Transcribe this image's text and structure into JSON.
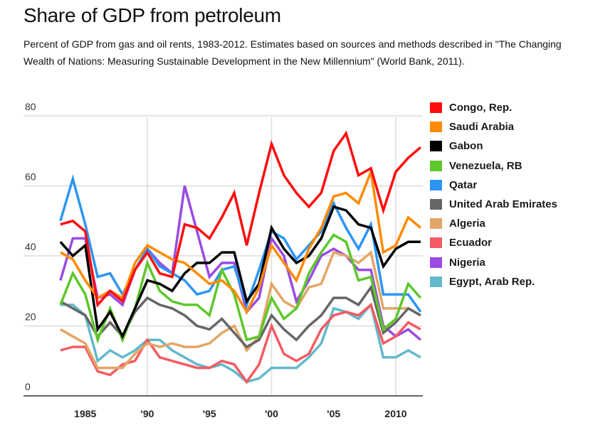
{
  "header": {
    "title": "Share of GDP from petroleum",
    "subtitle": "Percent of GDP from gas and oil rents, 1983-2012. Estimates based on sources and methods described in \"The Changing Wealth of Nations: Measuring Sustainable Development in the New Millennium\" (World Bank, 2011)."
  },
  "chart_data": {
    "type": "line",
    "title": "Share of GDP from petroleum",
    "subtitle": "Percent of GDP from gas and oil rents, 1983-2012.",
    "xlabel": "",
    "ylabel": "",
    "x": [
      1983,
      1984,
      1985,
      1986,
      1987,
      1988,
      1989,
      1990,
      1991,
      1992,
      1993,
      1994,
      1995,
      1996,
      1997,
      1998,
      1999,
      2000,
      2001,
      2002,
      2003,
      2004,
      2005,
      2006,
      2007,
      2008,
      2009,
      2010,
      2011,
      2012
    ],
    "xlim": [
      1983,
      2012
    ],
    "ylim": [
      0,
      80
    ],
    "y_ticks": [
      0,
      20,
      40,
      60,
      80
    ],
    "y_tick_labels": [
      "0",
      "20",
      "40",
      "60",
      "80"
    ],
    "x_ticks": [
      1985,
      1990,
      1995,
      2000,
      2005,
      2010
    ],
    "x_tick_labels": [
      "1985",
      "'90",
      "'95",
      "'00",
      "'05",
      "2010"
    ],
    "x_gridlines": [
      1990,
      2000,
      2010
    ],
    "grid": true,
    "legend_position": "right",
    "series": [
      {
        "name": "Nigeria",
        "color": "#9b4ae3",
        "values": [
          33,
          45,
          45,
          28,
          29,
          26,
          36,
          42,
          38,
          35,
          60,
          47,
          34,
          38,
          38,
          24,
          28,
          45,
          40,
          27,
          33,
          40,
          42,
          40,
          36,
          36,
          20,
          17,
          19,
          16
        ]
      },
      {
        "name": "Egypt, Arab Rep.",
        "color": "#63b9cc",
        "values": [
          26,
          26,
          23,
          10,
          13,
          11,
          13,
          16,
          16,
          13,
          11,
          9,
          8,
          9,
          7,
          4,
          5,
          8,
          8,
          8,
          11,
          15,
          25,
          24,
          22,
          26,
          11,
          11,
          13,
          11
        ]
      },
      {
        "name": "Ecuador",
        "color": "#f45b62",
        "values": [
          13,
          14,
          14,
          7,
          6,
          9,
          10,
          16,
          11,
          10,
          9,
          8,
          8,
          10,
          9,
          4,
          9,
          20,
          12,
          10,
          12,
          19,
          23,
          24,
          23,
          26,
          15,
          17,
          21,
          19
        ]
      },
      {
        "name": "Algeria",
        "color": "#e3a566",
        "values": [
          19,
          17,
          15,
          8,
          8,
          8,
          12,
          15,
          14,
          15,
          14,
          14,
          15,
          18,
          20,
          13,
          17,
          32,
          27,
          25,
          31,
          32,
          41,
          40,
          38,
          41,
          25,
          25,
          25,
          23
        ]
      },
      {
        "name": "United Arab Emirates",
        "color": "#666666",
        "values": [
          27,
          25,
          23,
          17,
          21,
          17,
          24,
          28,
          26,
          25,
          23,
          20,
          19,
          22,
          18,
          14,
          16,
          23,
          19,
          16,
          20,
          23,
          28,
          28,
          26,
          31,
          18,
          21,
          25,
          23
        ]
      },
      {
        "name": "Qatar",
        "color": "#2b95f5",
        "values": [
          50,
          62,
          49,
          34,
          35,
          29,
          36,
          42,
          37,
          35,
          33,
          29,
          30,
          36,
          37,
          26,
          36,
          47,
          45,
          39,
          43,
          47,
          55,
          48,
          42,
          49,
          29,
          29,
          29,
          24
        ]
      },
      {
        "name": "Venezuela, RB",
        "color": "#5dc82a",
        "values": [
          26,
          35,
          29,
          16,
          25,
          16,
          25,
          38,
          30,
          27,
          26,
          26,
          23,
          36,
          29,
          16,
          17,
          28,
          22,
          25,
          35,
          41,
          46,
          44,
          33,
          34,
          19,
          22,
          32,
          28
        ]
      },
      {
        "name": "Gabon",
        "color": "#000000",
        "values": [
          44,
          40,
          43,
          19,
          24,
          17,
          25,
          33,
          32,
          30,
          35,
          38,
          38,
          41,
          41,
          27,
          32,
          48,
          42,
          38,
          40,
          45,
          54,
          53,
          49,
          48,
          37,
          42,
          44,
          44
        ]
      },
      {
        "name": "Saudi Arabia",
        "color": "#ff8a00",
        "values": [
          41,
          39,
          33,
          28,
          30,
          28,
          38,
          43,
          41,
          39,
          38,
          35,
          32,
          33,
          30,
          24,
          31,
          43,
          38,
          33,
          42,
          48,
          57,
          58,
          55,
          64,
          41,
          43,
          51,
          48
        ]
      },
      {
        "name": "Congo, Rep.",
        "color": "#ff0d0d",
        "values": [
          49,
          50,
          47,
          26,
          30,
          27,
          36,
          41,
          35,
          34,
          49,
          48,
          45,
          51,
          58,
          43,
          58,
          72,
          63,
          58,
          54,
          58,
          70,
          75,
          63,
          65,
          53,
          64,
          68,
          71
        ]
      }
    ]
  },
  "legend": {
    "items": [
      {
        "label": "Congo, Rep.",
        "color": "#ff0d0d"
      },
      {
        "label": "Saudi Arabia",
        "color": "#ff8a00"
      },
      {
        "label": "Gabon",
        "color": "#000000"
      },
      {
        "label": "Venezuela, RB",
        "color": "#5dc82a"
      },
      {
        "label": "Qatar",
        "color": "#2b95f5"
      },
      {
        "label": "United Arab Emirates",
        "color": "#666666"
      },
      {
        "label": "Algeria",
        "color": "#e3a566"
      },
      {
        "label": "Ecuador",
        "color": "#f45b62"
      },
      {
        "label": "Nigeria",
        "color": "#9b4ae3"
      },
      {
        "label": "Egypt, Arab Rep.",
        "color": "#63b9cc"
      }
    ]
  }
}
